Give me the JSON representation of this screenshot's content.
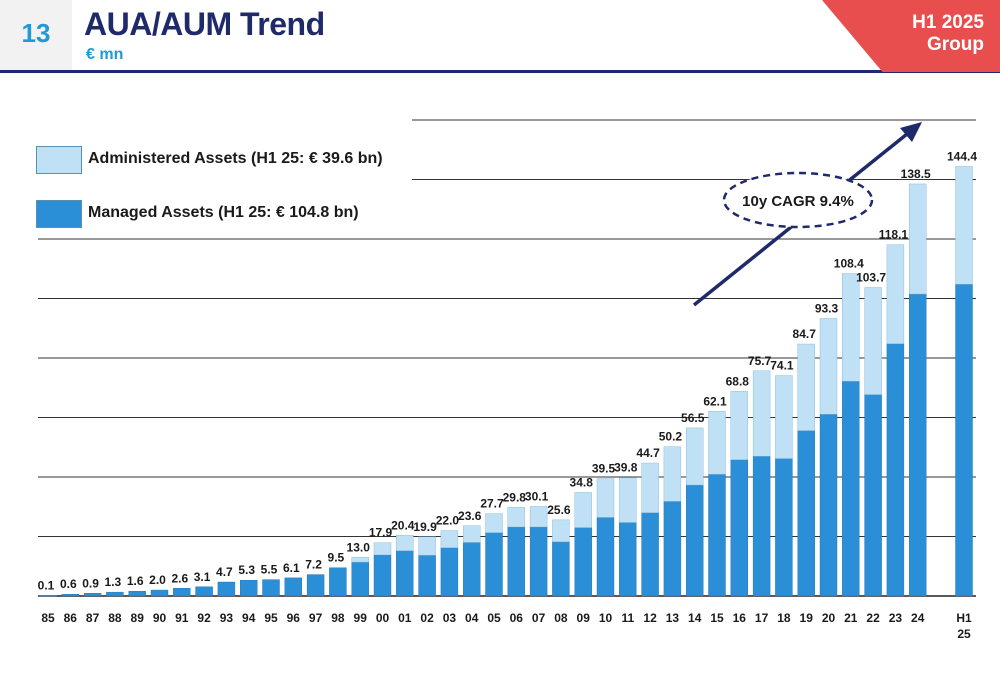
{
  "header": {
    "page_number": "13",
    "title": "AUA/AUM Trend",
    "subtitle": "€ mn",
    "tag_line1": "H1 2025",
    "tag_line2": "Group"
  },
  "colors": {
    "navy": "#1f2a6b",
    "accent_blue": "#1e9ad6",
    "managed": "#2a8fd6",
    "administered": "#bfe0f5",
    "tag_red": "#e94e4e"
  },
  "legend": {
    "administered_label": "Administered Assets (H1 25: € 39.6 bn)",
    "managed_label": "Managed Assets (H1 25: € 104.8 bn)"
  },
  "annotation": {
    "cagr_label": "10y CAGR 9.4%"
  },
  "chart_data": {
    "type": "bar",
    "stacked": true,
    "title": "AUA/AUM Trend",
    "ylabel": "€ mn",
    "ylim": [
      0,
      160
    ],
    "grid": true,
    "legend_position": "top-left",
    "categories": [
      "85",
      "86",
      "87",
      "88",
      "89",
      "90",
      "91",
      "92",
      "93",
      "94",
      "95",
      "96",
      "97",
      "98",
      "99",
      "00",
      "01",
      "02",
      "03",
      "04",
      "05",
      "06",
      "07",
      "08",
      "09",
      "10",
      "11",
      "12",
      "13",
      "14",
      "15",
      "16",
      "17",
      "18",
      "19",
      "20",
      "21",
      "22",
      "23",
      "24",
      "H1 25"
    ],
    "totals": [
      0.1,
      0.6,
      0.9,
      1.3,
      1.6,
      2.0,
      2.6,
      3.1,
      4.7,
      5.3,
      5.5,
      6.1,
      7.2,
      9.5,
      13.0,
      17.9,
      20.4,
      19.9,
      22.0,
      23.6,
      27.7,
      29.8,
      30.1,
      25.6,
      34.8,
      39.5,
      39.8,
      44.7,
      50.2,
      56.5,
      62.1,
      68.8,
      75.7,
      74.1,
      84.7,
      93.3,
      108.4,
      103.7,
      118.1,
      138.5,
      144.4
    ],
    "total_labels": [
      "0.1",
      "0.6",
      "0.9",
      "1.3",
      "1.6",
      "2.0",
      "2.6",
      "3.1",
      "4.7",
      "5.3",
      "5.5",
      "6.1",
      "7.2",
      "9.5",
      "13.0",
      "17.9",
      "20.4",
      "19.9",
      "22.0",
      "23.6",
      "27.7",
      "29.8",
      "30.1",
      "25.6",
      "34.8",
      "39.5",
      "39.8",
      "44.7",
      "50.2",
      "56.5",
      "62.1",
      "68.8",
      "75.7",
      "74.1",
      "84.7",
      "93.3",
      "108.4",
      "103.7",
      "118.1",
      "138.5",
      "144.4"
    ],
    "series": [
      {
        "name": "Managed Assets (H1 25: € 104.8 bn)",
        "values": [
          0.1,
          0.6,
          0.9,
          1.3,
          1.6,
          2.0,
          2.6,
          3.1,
          4.7,
          5.3,
          5.5,
          6.1,
          7.2,
          9.5,
          11.4,
          13.8,
          15.2,
          13.7,
          16.2,
          18.0,
          21.3,
          23.2,
          23.2,
          18.2,
          23.0,
          26.4,
          24.7,
          28.0,
          31.8,
          37.3,
          40.9,
          45.8,
          47.0,
          46.2,
          55.6,
          61.1,
          72.2,
          67.7,
          84.8,
          101.5,
          104.8
        ]
      },
      {
        "name": "Administered Assets (H1 25: € 39.6 bn)",
        "values": [
          0,
          0,
          0,
          0,
          0,
          0,
          0,
          0,
          0,
          0,
          0,
          0,
          0,
          0,
          1.6,
          4.1,
          5.2,
          6.2,
          5.8,
          5.6,
          6.4,
          6.6,
          6.9,
          7.4,
          11.8,
          13.1,
          15.1,
          16.7,
          18.4,
          19.2,
          21.2,
          23.0,
          28.7,
          27.9,
          29.1,
          32.2,
          36.2,
          36.0,
          33.3,
          37.0,
          39.6
        ]
      }
    ],
    "x_tick_labels": [
      [
        "85"
      ],
      [
        "86"
      ],
      [
        "87"
      ],
      [
        "88"
      ],
      [
        "89"
      ],
      [
        "90"
      ],
      [
        "91"
      ],
      [
        "92"
      ],
      [
        "93"
      ],
      [
        "94"
      ],
      [
        "95"
      ],
      [
        "96"
      ],
      [
        "97"
      ],
      [
        "98"
      ],
      [
        "99"
      ],
      [
        "00"
      ],
      [
        "01"
      ],
      [
        "02"
      ],
      [
        "03"
      ],
      [
        "04"
      ],
      [
        "05"
      ],
      [
        "06"
      ],
      [
        "07"
      ],
      [
        "08"
      ],
      [
        "09"
      ],
      [
        "10"
      ],
      [
        "11"
      ],
      [
        "12"
      ],
      [
        "13"
      ],
      [
        "14"
      ],
      [
        "15"
      ],
      [
        "16"
      ],
      [
        "17"
      ],
      [
        "18"
      ],
      [
        "19"
      ],
      [
        "20"
      ],
      [
        "21"
      ],
      [
        "22"
      ],
      [
        "23"
      ],
      [
        "24"
      ],
      [
        "H1",
        "25"
      ]
    ]
  }
}
